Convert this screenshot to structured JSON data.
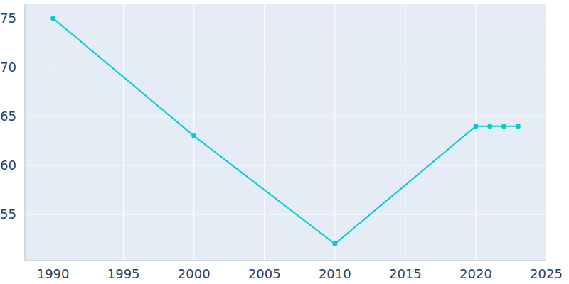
{
  "chart_data": {
    "type": "line",
    "x": [
      1990,
      2000,
      2010,
      2020,
      2021,
      2022,
      2023
    ],
    "values": [
      75,
      63,
      52,
      64,
      64,
      64,
      64
    ],
    "color": "#00cccc",
    "marker": "circle",
    "xlim": [
      1988,
      2025
    ],
    "xticks": [
      1990,
      1995,
      2000,
      2005,
      2010,
      2015,
      2020,
      2025
    ],
    "ylim": [
      50.3,
      76.5
    ],
    "yticks": [
      55,
      60,
      65,
      70,
      75
    ],
    "grid": true
  }
}
